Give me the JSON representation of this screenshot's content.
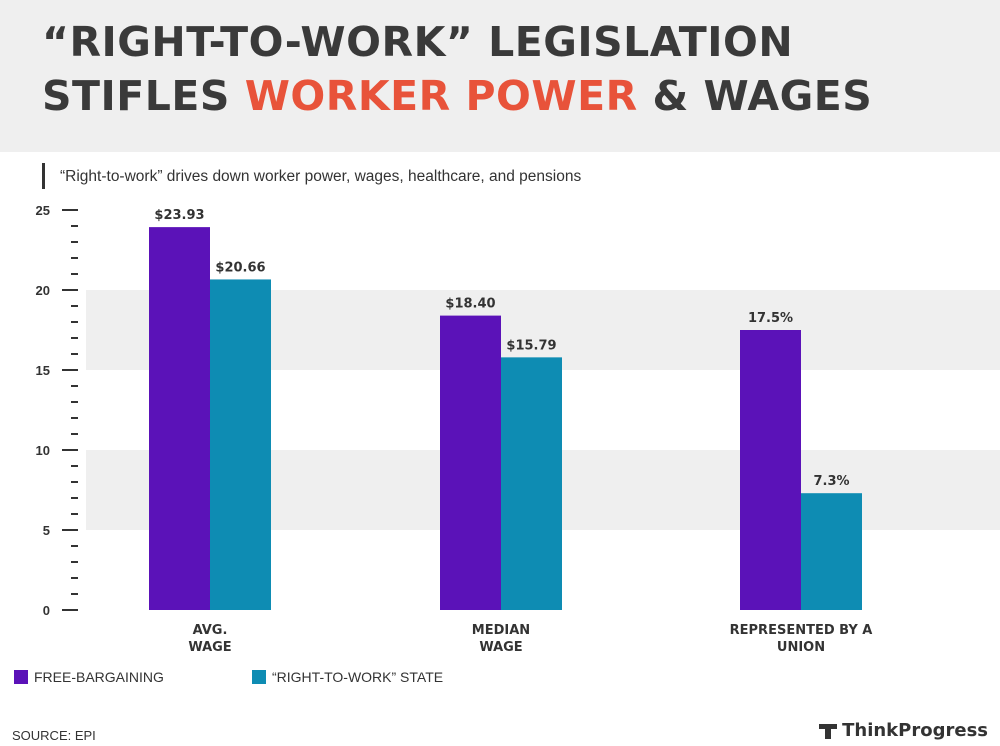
{
  "header": {
    "title_line1": "“RIGHT-TO-WORK” LEGISLATION",
    "title_line2_pre": "STIFLES ",
    "title_line2_accent": "WORKER POWER",
    "title_line2_post": " & WAGES",
    "accent_color": "#e8533a"
  },
  "subtitle": "“Right-to-work” drives down worker power, wages, healthcare, and pensions",
  "chart_data": {
    "type": "bar",
    "title": "",
    "xlabel": "",
    "ylabel": "",
    "ylim": [
      0,
      25
    ],
    "yticks": [
      "0",
      "5",
      "10",
      "15",
      "20",
      "25"
    ],
    "grid": "alternating bands",
    "legend": "bottom-left",
    "categories": [
      [
        "AVG.",
        "WAGE"
      ],
      [
        "MEDIAN",
        "WAGE"
      ],
      [
        "REPRESENTED BY A",
        "UNION"
      ]
    ],
    "series": [
      {
        "name": "FREE-BARGAINING",
        "color": "#5b12b8",
        "values": [
          23.93,
          18.4,
          17.5
        ],
        "labels": [
          "$23.93",
          "$18.40",
          "17.5%"
        ]
      },
      {
        "name": "“RIGHT-TO-WORK” STATE",
        "color": "#0e8cb3",
        "values": [
          20.66,
          15.79,
          7.3
        ],
        "labels": [
          "$20.66",
          "$15.79",
          "7.3%"
        ]
      }
    ]
  },
  "footer": {
    "source": "SOURCE: EPI",
    "brand": "ThinkProgress"
  }
}
